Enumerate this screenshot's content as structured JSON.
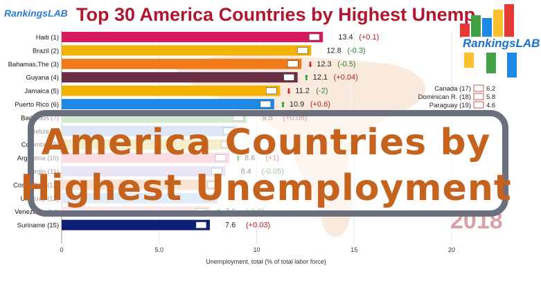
{
  "brand": {
    "small_logo": "RankingsLAB",
    "logo": "RankingsLAB"
  },
  "overlay": {
    "line1": "America Countries by",
    "line2": "Highest Unemployment"
  },
  "year_watermark": "2018",
  "colors": {
    "title": "#b0162e",
    "overlay_text": "#c4621e",
    "overlay_border": "#6b6f7e"
  },
  "chart_data": {
    "type": "bar",
    "title": "Top 30 America Countries by Highest Unemp",
    "xlabel": "Unemployment, total (% of total labor force)",
    "xlim": [
      0,
      22
    ],
    "x_ticks": [
      "0",
      "5.0",
      "10",
      "15",
      "20"
    ],
    "bars": [
      {
        "label": "Haiti (1)",
        "value": 13.4,
        "value_text": "13.4",
        "change": "(+0.1)",
        "trend": "",
        "color": "#d81b60"
      },
      {
        "label": "Brazil (2)",
        "value": 12.8,
        "value_text": "12.8",
        "change": "(-0.3)",
        "trend": "",
        "color": "#f2b300"
      },
      {
        "label": "Bahamas,The (3)",
        "value": 12.3,
        "value_text": "12.3",
        "change": "(-0.5)",
        "trend": "down",
        "color": "#f07a1a"
      },
      {
        "label": "Guyana (4)",
        "value": 12.1,
        "value_text": "12.1",
        "change": "(+0.04)",
        "trend": "up",
        "color": "#6b2f45"
      },
      {
        "label": "Jamaica (5)",
        "value": 11.2,
        "value_text": "11.2",
        "change": "(-2)",
        "trend": "down",
        "color": "#f2b300"
      },
      {
        "label": "Puerto Rico (6)",
        "value": 10.9,
        "value_text": "10.9",
        "change": "(+0.6)",
        "trend": "up",
        "color": "#1e88e5"
      },
      {
        "label": "Barbados (7)",
        "value": 9.5,
        "value_text": "9.5",
        "change": "(+0.08)",
        "trend": "",
        "color": "#9bd39b"
      },
      {
        "label": "Belize (8)",
        "value": 9.0,
        "value_text": "",
        "change": "",
        "trend": "",
        "color": "#b7c9e8"
      },
      {
        "label": "Colombia (9)",
        "value": 8.9,
        "value_text": "",
        "change": "",
        "trend": "",
        "color": "#e8d88c"
      },
      {
        "label": "Argentina (10)",
        "value": 8.6,
        "value_text": "8.6",
        "change": "(+1)",
        "trend": "up",
        "color": "#f3b6c2"
      },
      {
        "label": "Virgin (11)",
        "value": 8.4,
        "value_text": "8.4",
        "change": "(-0.05)",
        "trend": "",
        "color": "#cfc6e6"
      },
      {
        "label": "Costa Rica (12)",
        "value": 8.2,
        "value_text": "",
        "change": "",
        "trend": "",
        "color": "#f6c1a1"
      },
      {
        "label": "Uruguay (13)",
        "value": 8.0,
        "value_text": "",
        "change": "",
        "trend": "",
        "color": "#b9d8f2"
      },
      {
        "label": "Venezuela (14)",
        "value": 7.6,
        "value_text": "7.6",
        "change": "(-0.9)",
        "trend": "up",
        "color": "#f0c7cc"
      },
      {
        "label": "Suriname (15)",
        "value": 7.6,
        "value_text": "7.6",
        "change": "(+0.03)",
        "trend": "",
        "color": "#0b1f75"
      }
    ],
    "side_list": [
      {
        "label": "Canada (17)",
        "value": "6.2"
      },
      {
        "label": "Dominican R. (18)",
        "value": "5.8"
      },
      {
        "label": "Paraguay (19)",
        "value": "4.6"
      }
    ]
  }
}
